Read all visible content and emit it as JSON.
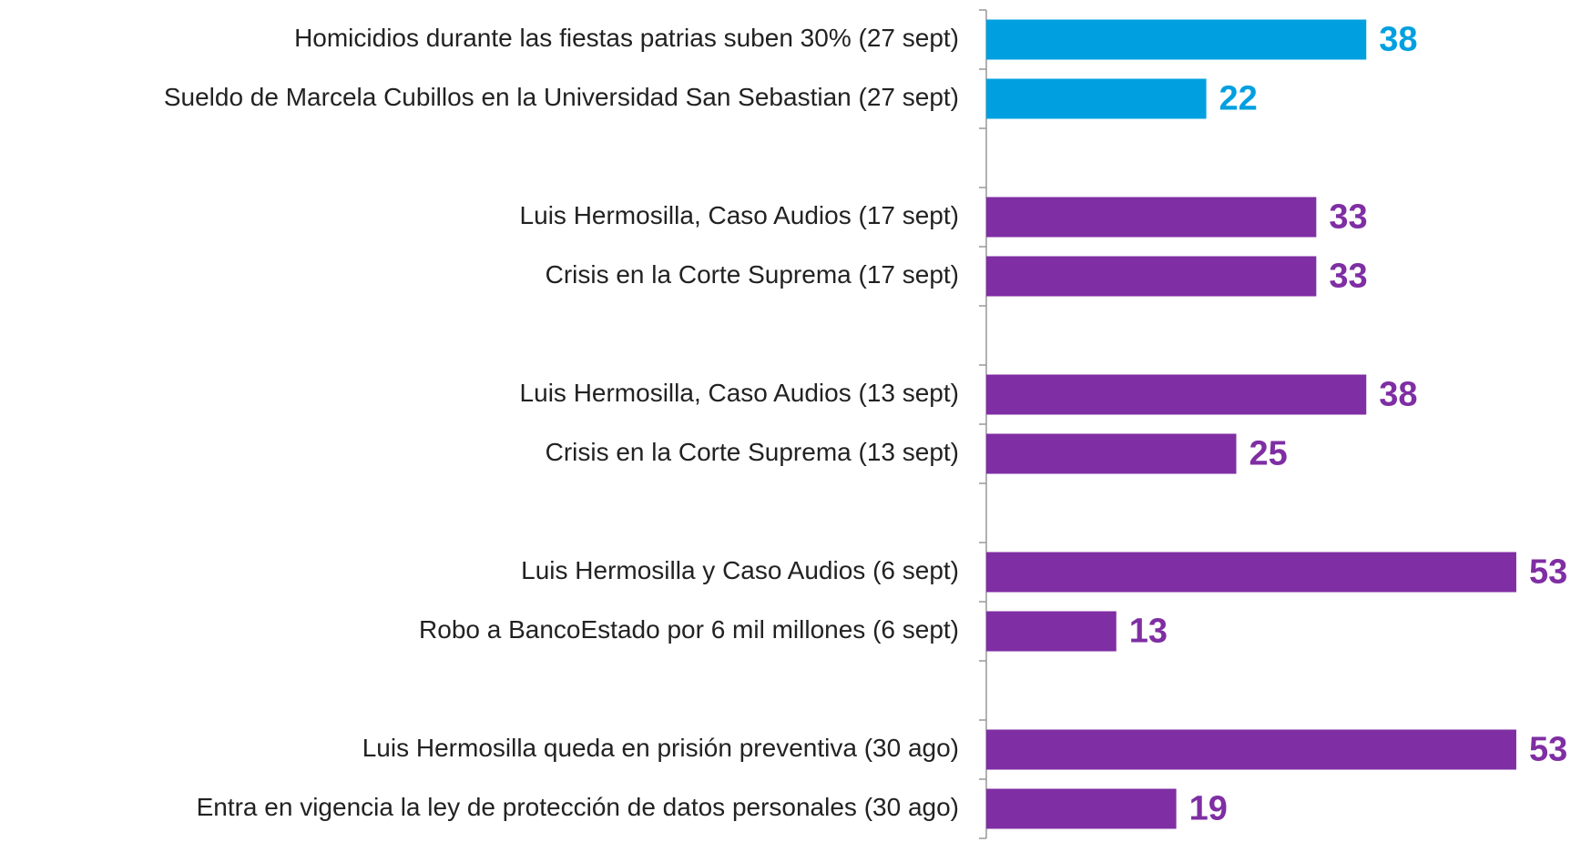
{
  "chart_data": {
    "type": "hbar",
    "categories": [
      "Homicidios durante las fiestas patrias suben 30% (27 sept)",
      "Sueldo de Marcela Cubillos en la Universidad San Sebastian (27 sept)",
      null,
      "Luis Hermosilla, Caso Audios (17 sept)",
      "Crisis en la Corte Suprema  (17 sept)",
      null,
      "Luis Hermosilla, Caso Audios (13 sept)",
      "Crisis en la Corte Suprema  (13 sept)",
      null,
      "Luis Hermosilla y Caso Audios (6 sept)",
      "Robo a BancoEstado por 6 mil millones (6 sept)",
      null,
      "Luis Hermosilla queda en prisión preventiva (30 ago)",
      "Entra en vigencia la ley de protección de datos personales (30 ago)"
    ],
    "values": [
      38,
      22,
      null,
      33,
      33,
      null,
      38,
      25,
      null,
      53,
      13,
      null,
      53,
      19
    ],
    "colors": [
      "#00a0e0",
      "#00a0e0",
      null,
      "#7f2ea3",
      "#7f2ea3",
      null,
      "#7f2ea3",
      "#7f2ea3",
      null,
      "#7f2ea3",
      "#7f2ea3",
      null,
      "#7f2ea3",
      "#7f2ea3"
    ]
  }
}
